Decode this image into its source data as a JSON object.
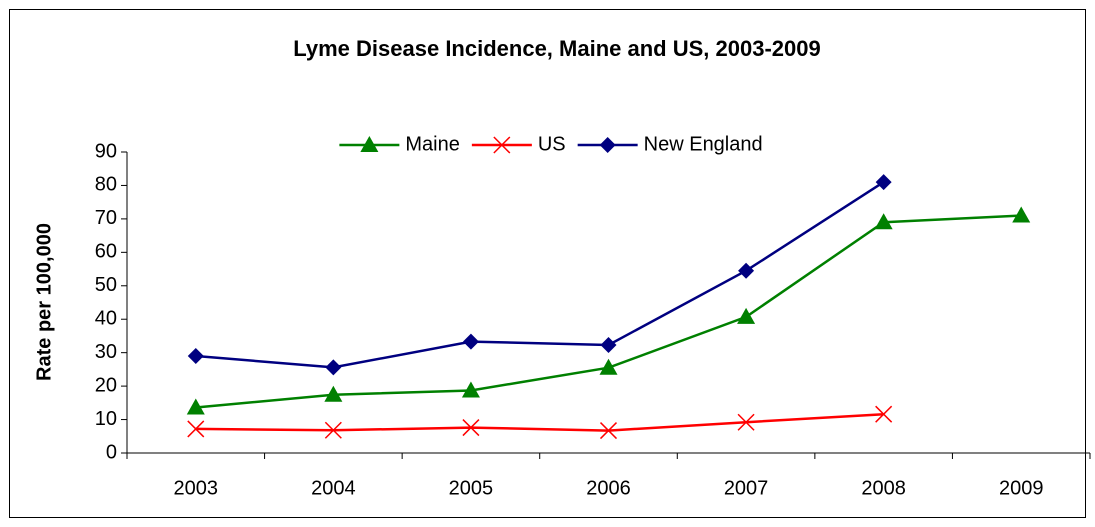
{
  "chart_data": {
    "type": "line",
    "title": "Lyme Disease Incidence, Maine and US, 2003-2009",
    "y_label": "Rate per 100,000",
    "categories": [
      "2003",
      "2004",
      "2005",
      "2006",
      "2007",
      "2008",
      "2009"
    ],
    "series": [
      {
        "name": "Maine",
        "color": "#008000",
        "marker": "triangle",
        "values": [
          13.6,
          17.4,
          18.7,
          25.5,
          40.7,
          69,
          71
        ]
      },
      {
        "name": "US",
        "color": "#ff0000",
        "marker": "x",
        "values": [
          7.2,
          6.8,
          7.6,
          6.7,
          9.2,
          11.6,
          null
        ]
      },
      {
        "name": "New England",
        "color": "#000080",
        "marker": "diamond",
        "values": [
          29,
          25.6,
          33.3,
          32.3,
          54.5,
          81,
          null
        ]
      }
    ],
    "ylim": [
      0,
      90
    ],
    "yticks": [
      0,
      10,
      20,
      30,
      40,
      50,
      60,
      70,
      80,
      90
    ],
    "legend": "top",
    "grid": false
  }
}
